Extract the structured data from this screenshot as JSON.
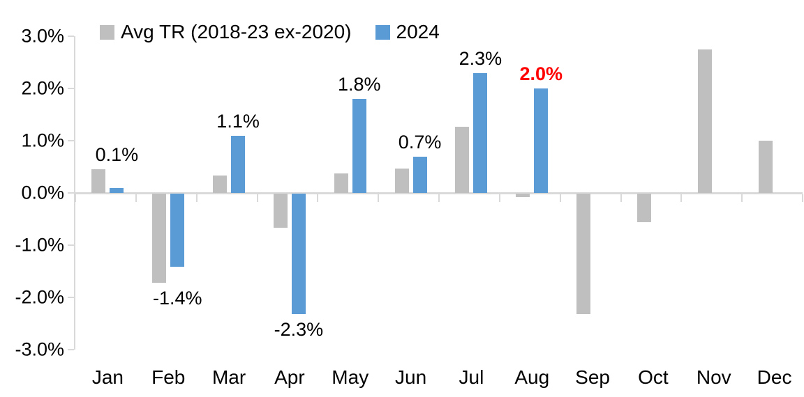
{
  "chart_data": {
    "type": "bar",
    "title": "",
    "xlabel": "",
    "ylabel": "",
    "ylim": [
      -3,
      3
    ],
    "grid": false,
    "legend_position": "top",
    "categories": [
      "Jan",
      "Feb",
      "Mar",
      "Apr",
      "May",
      "Jun",
      "Jul",
      "Aug",
      "Sep",
      "Oct",
      "Nov",
      "Dec"
    ],
    "yticks": [
      {
        "label": "3.0%",
        "value": 3
      },
      {
        "label": "2.0%",
        "value": 2
      },
      {
        "label": "1.0%",
        "value": 1
      },
      {
        "label": "0.0%",
        "value": 0
      },
      {
        "label": "-1.0%",
        "value": -1
      },
      {
        "label": "-2.0%",
        "value": -2
      },
      {
        "label": "-3.0%",
        "value": -3
      }
    ],
    "series": [
      {
        "name": "Avg TR (2018-23 ex-2020)",
        "color": "#bfbfbf",
        "values": [
          0.45,
          -1.7,
          0.33,
          -0.65,
          0.38,
          0.47,
          1.27,
          -0.07,
          -2.3,
          -0.55,
          2.75,
          1.0
        ]
      },
      {
        "name": "2024",
        "color": "#5b9bd5",
        "values": [
          0.1,
          -1.4,
          1.1,
          -2.3,
          1.8,
          0.7,
          2.3,
          2.0,
          null,
          null,
          null,
          null
        ],
        "data_labels": [
          {
            "text": "0.1%",
            "color": "#000000",
            "bold": false
          },
          {
            "text": "-1.4%",
            "color": "#000000",
            "bold": false
          },
          {
            "text": "1.1%",
            "color": "#000000",
            "bold": false
          },
          {
            "text": "-2.3%",
            "color": "#000000",
            "bold": false
          },
          {
            "text": "1.8%",
            "color": "#000000",
            "bold": false
          },
          {
            "text": "0.7%",
            "color": "#000000",
            "bold": false
          },
          {
            "text": "2.3%",
            "color": "#000000",
            "bold": false
          },
          {
            "text": "2.0%",
            "color": "#ff0000",
            "bold": true
          },
          null,
          null,
          null,
          null
        ]
      }
    ],
    "axis_color": "#d9d9d9",
    "background": "#ffffff"
  },
  "legend": {
    "items": [
      {
        "label": "Avg TR (2018-23 ex-2020)",
        "color": "#bfbfbf"
      },
      {
        "label": "2024",
        "color": "#5b9bd5"
      }
    ]
  }
}
